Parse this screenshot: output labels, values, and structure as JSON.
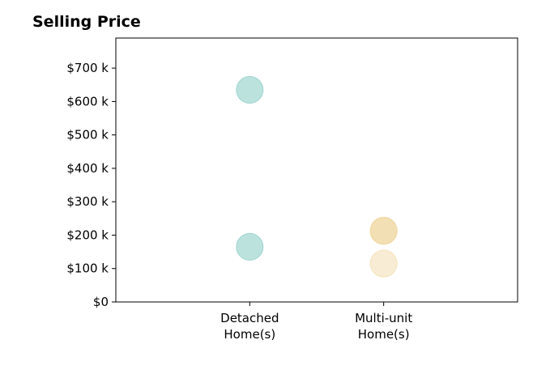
{
  "chart_data": {
    "type": "scatter",
    "title": "Selling Price",
    "categories": [
      "Detached Home(s)",
      "Multi-unit Home(s)"
    ],
    "category_label_lines": [
      [
        "Detached",
        "Home(s)"
      ],
      [
        "Multi-unit",
        "Home(s)"
      ]
    ],
    "x_range": [
      -1,
      2
    ],
    "y_ticks": [
      0,
      100000,
      200000,
      300000,
      400000,
      500000,
      600000,
      700000
    ],
    "y_tick_labels": [
      "$0",
      "$100 k",
      "$200 k",
      "$300 k",
      "$400 k",
      "$500 k",
      "$600 k",
      "$700 k"
    ],
    "ylim": [
      0,
      790000
    ],
    "grid": false,
    "points": [
      {
        "category": "Detached Home(s)",
        "value": 635000,
        "color": "#8fcfc8",
        "opacity": 0.6
      },
      {
        "category": "Detached Home(s)",
        "value": 165000,
        "color": "#8fcfc8",
        "opacity": 0.6
      },
      {
        "category": "Multi-unit Home(s)",
        "value": 212000,
        "color": "#efd7a0",
        "opacity": 0.55
      },
      {
        "category": "Multi-unit Home(s)",
        "value": 214000,
        "color": "#efd7a0",
        "opacity": 0.55
      },
      {
        "category": "Multi-unit Home(s)",
        "value": 115000,
        "color": "#efd7a0",
        "opacity": 0.45
      }
    ]
  }
}
